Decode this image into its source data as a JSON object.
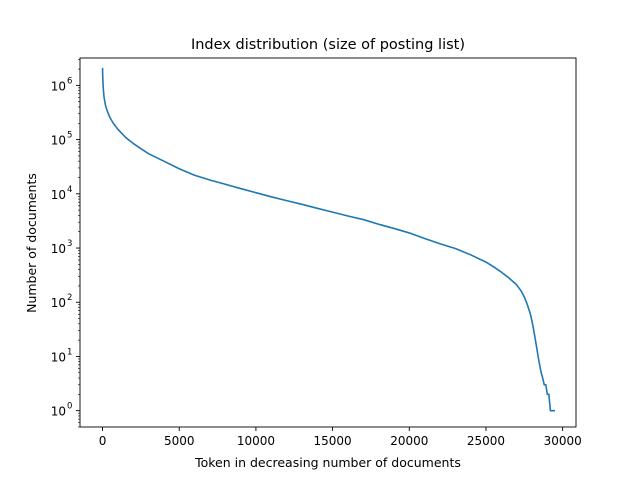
{
  "chart_data": {
    "type": "line",
    "title": "Index distribution (size of posting list)",
    "xlabel": "Token in decreasing number of documents",
    "ylabel": "Number of documents",
    "xscale": "linear",
    "yscale": "log",
    "xlim": [
      -1470,
      30870
    ],
    "ylim": [
      0.5,
      3200000
    ],
    "grid": false,
    "legend": "none",
    "color": "#1f77b4",
    "xticks": [
      {
        "value": 0,
        "label": "0"
      },
      {
        "value": 5000,
        "label": "5000"
      },
      {
        "value": 10000,
        "label": "10000"
      },
      {
        "value": 15000,
        "label": "15000"
      },
      {
        "value": 20000,
        "label": "20000"
      },
      {
        "value": 25000,
        "label": "25000"
      },
      {
        "value": 30000,
        "label": "30000"
      }
    ],
    "yticks": [
      {
        "value": 1,
        "base": "10",
        "exp": "0"
      },
      {
        "value": 10,
        "base": "10",
        "exp": "1"
      },
      {
        "value": 100,
        "base": "10",
        "exp": "2"
      },
      {
        "value": 1000,
        "base": "10",
        "exp": "3"
      },
      {
        "value": 10000,
        "base": "10",
        "exp": "4"
      },
      {
        "value": 100000,
        "base": "10",
        "exp": "5"
      },
      {
        "value": 1000000,
        "base": "10",
        "exp": "6"
      }
    ],
    "series": [
      {
        "x": [
          0,
          10,
          30,
          60,
          100,
          150,
          200,
          300,
          400,
          500,
          700,
          1000,
          1500,
          2000,
          2500,
          3000,
          4000,
          5000,
          6000,
          7000,
          8000,
          9000,
          10000,
          11000,
          12000,
          13000,
          14000,
          15000,
          16000,
          17000,
          18000,
          19000,
          20000,
          21000,
          22000,
          23000,
          24000,
          25000,
          25500,
          26000,
          26500,
          27000,
          27300,
          27500,
          27700,
          27900,
          28000,
          28100,
          28200,
          28300,
          28400,
          28500,
          28600,
          28700,
          28800,
          28900,
          29000,
          29100,
          29200,
          29300,
          29500
        ],
        "y": [
          2100000,
          1500000,
          1100000,
          800000,
          600000,
          500000,
          420000,
          340000,
          290000,
          250000,
          200000,
          155000,
          110000,
          85000,
          68000,
          55000,
          40000,
          29000,
          22000,
          18000,
          15000,
          12500,
          10500,
          8800,
          7500,
          6400,
          5400,
          4600,
          3900,
          3350,
          2750,
          2300,
          1900,
          1500,
          1200,
          980,
          750,
          550,
          450,
          360,
          280,
          210,
          160,
          125,
          90,
          60,
          45,
          32,
          22,
          15,
          10,
          7,
          5,
          4,
          3,
          3,
          2,
          2,
          1,
          1,
          1
        ]
      }
    ]
  }
}
